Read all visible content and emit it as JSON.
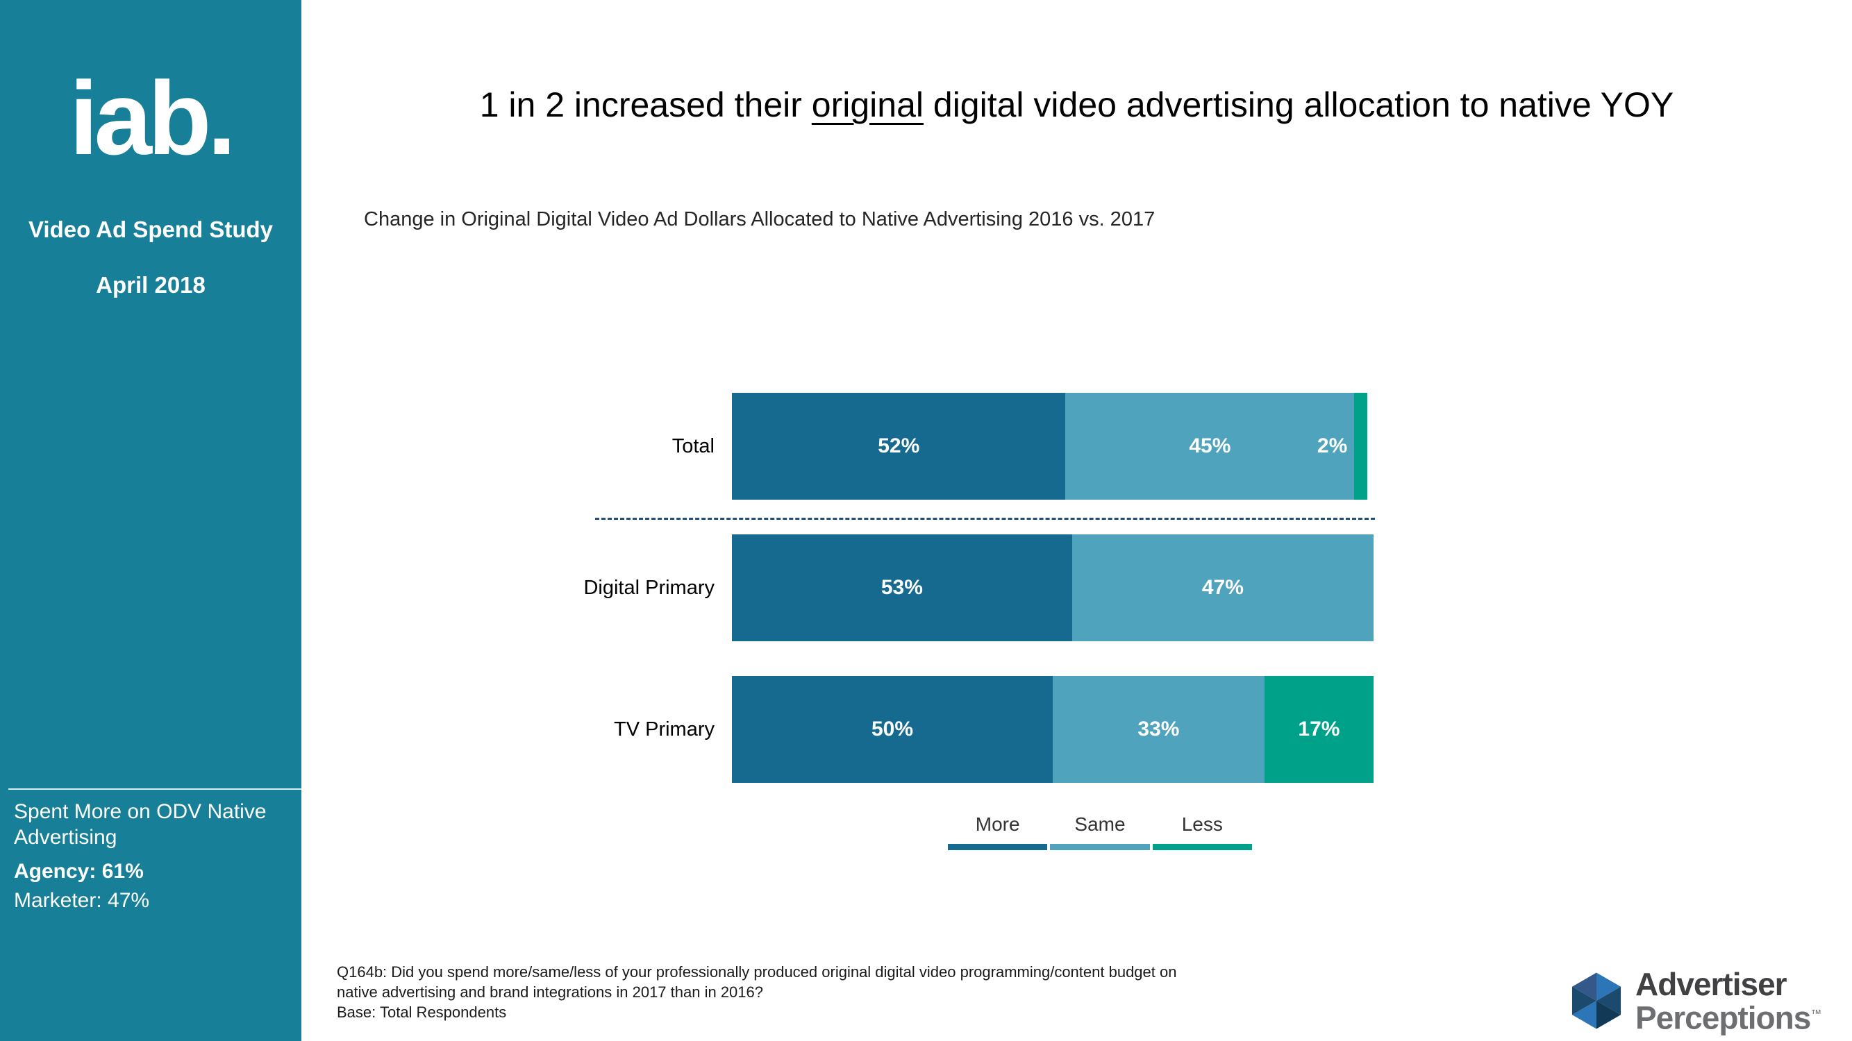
{
  "sidebar": {
    "logo_text": "iab.",
    "study_title": "Video Ad Spend Study",
    "date": "April 2018",
    "callout": {
      "heading": "Spent More on ODV Native Advertising",
      "agency": "Agency: 61%",
      "marketer": "Marketer: 47%"
    }
  },
  "header": {
    "title_prefix": "1 in 2 increased their ",
    "title_underlined": "original",
    "title_suffix": " digital video advertising allocation to native YOY",
    "subtitle": "Change in Original Digital Video Ad Dollars Allocated to Native Advertising 2016 vs. 2017"
  },
  "chart_data": {
    "type": "bar",
    "orientation": "horizontal",
    "stacked": true,
    "title": "Change in Original Digital Video Ad Dollars Allocated to Native Advertising 2016 vs. 2017",
    "categories": [
      "Total",
      "Digital Primary",
      "TV Primary"
    ],
    "series": [
      {
        "name": "More",
        "color": "#166A8F",
        "values": [
          52,
          53,
          50
        ]
      },
      {
        "name": "Same",
        "color": "#4FA3BC",
        "values": [
          45,
          47,
          33
        ]
      },
      {
        "name": "Less",
        "color": "#00A189",
        "values": [
          2,
          0,
          17
        ]
      }
    ],
    "value_format": "percent",
    "xlim": [
      0,
      100
    ],
    "legend_position": "bottom",
    "grid": false
  },
  "legend": [
    {
      "label": "More",
      "color": "#166A8F"
    },
    {
      "label": "Same",
      "color": "#4FA3BC"
    },
    {
      "label": "Less",
      "color": "#00A189"
    }
  ],
  "footnote": {
    "line1": "Q164b: Did you spend more/same/less of your professionally produced original digital video programming/content budget on",
    "line2": "native advertising and brand integrations in 2017 than in 2016?",
    "line3": "Base: Total Respondents"
  },
  "branding": {
    "line1": "Advertiser",
    "line2": "Perceptions",
    "tm": "™"
  },
  "colors": {
    "sidebar_bg": "#187F99",
    "dashed_separator": "#1F4E79",
    "more": "#166A8F",
    "same": "#4FA3BC",
    "less": "#00A189"
  }
}
